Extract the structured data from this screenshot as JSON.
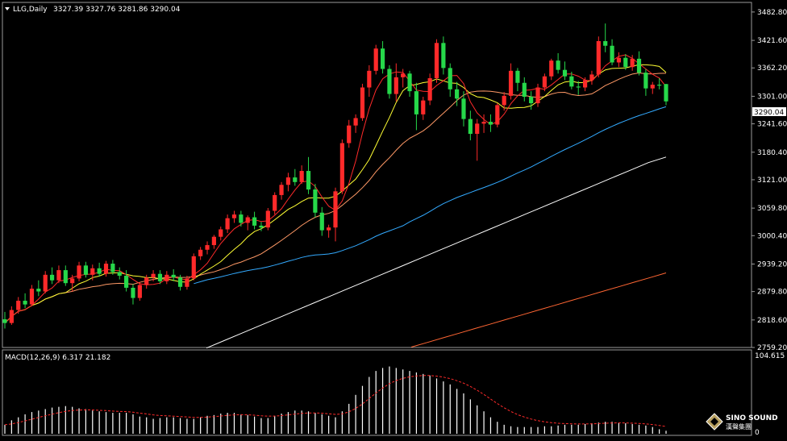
{
  "chart_data": [
    {
      "type": "candlestick",
      "header": {
        "symbol_label": "LLG,Daily",
        "ohlc_text": "3327.39 3327.76 3281.86 3290.04"
      },
      "y_ticks": [
        "3482.80",
        "3421.60",
        "3362.20",
        "3301.00",
        "3241.60",
        "3180.40",
        "3121.00",
        "3059.80",
        "3000.40",
        "2939.20",
        "2879.80",
        "2818.60",
        "2759.20"
      ],
      "ylim": [
        2759.2,
        3500.0
      ],
      "current_price_label": "3290.04",
      "colors": {
        "up": "#ff2a2a",
        "down": "#26d84a",
        "ma5": "#ff2a2a",
        "ma10": "#ffff33",
        "ma20": "#ff9966",
        "ma60": "#33aaff",
        "ma120": "#ffffff",
        "ma250": "#ff6633",
        "grid": "#555555"
      },
      "candles": [
        [
          2820,
          2836,
          2800,
          2812
        ],
        [
          2812,
          2848,
          2808,
          2840
        ],
        [
          2840,
          2868,
          2832,
          2860
        ],
        [
          2860,
          2876,
          2844,
          2852
        ],
        [
          2852,
          2894,
          2848,
          2886
        ],
        [
          2886,
          2904,
          2870,
          2880
        ],
        [
          2880,
          2924,
          2876,
          2916
        ],
        [
          2916,
          2932,
          2896,
          2904
        ],
        [
          2904,
          2936,
          2898,
          2926
        ],
        [
          2926,
          2936,
          2892,
          2898
        ],
        [
          2898,
          2916,
          2880,
          2908
        ],
        [
          2908,
          2944,
          2902,
          2936
        ],
        [
          2936,
          2944,
          2910,
          2916
        ],
        [
          2916,
          2938,
          2904,
          2930
        ],
        [
          2930,
          2942,
          2912,
          2918
        ],
        [
          2918,
          2946,
          2912,
          2940
        ],
        [
          2940,
          2948,
          2916,
          2922
        ],
        [
          2922,
          2932,
          2906,
          2914
        ],
        [
          2914,
          2926,
          2880,
          2888
        ],
        [
          2888,
          2896,
          2852,
          2866
        ],
        [
          2866,
          2900,
          2860,
          2894
        ],
        [
          2894,
          2916,
          2886,
          2910
        ],
        [
          2910,
          2926,
          2902,
          2918
        ],
        [
          2918,
          2926,
          2896,
          2902
        ],
        [
          2902,
          2924,
          2896,
          2916
        ],
        [
          2916,
          2928,
          2902,
          2910
        ],
        [
          2910,
          2916,
          2882,
          2890
        ],
        [
          2890,
          2914,
          2884,
          2908
        ],
        [
          2908,
          2962,
          2904,
          2956
        ],
        [
          2956,
          2976,
          2948,
          2970
        ],
        [
          2970,
          2988,
          2960,
          2980
        ],
        [
          2980,
          3002,
          2972,
          2998
        ],
        [
          2998,
          3020,
          2990,
          3014
        ],
        [
          3014,
          3046,
          3006,
          3038
        ],
        [
          3038,
          3054,
          3028,
          3046
        ],
        [
          3046,
          3054,
          3020,
          3028
        ],
        [
          3028,
          3044,
          3012,
          3040
        ],
        [
          3040,
          3052,
          3014,
          3022
        ],
        [
          3022,
          3030,
          3010,
          3018
        ],
        [
          3018,
          3060,
          3012,
          3054
        ],
        [
          3054,
          3094,
          3046,
          3088
        ],
        [
          3088,
          3116,
          3078,
          3110
        ],
        [
          3110,
          3136,
          3096,
          3126
        ],
        [
          3126,
          3144,
          3108,
          3116
        ],
        [
          3116,
          3152,
          3112,
          3140
        ],
        [
          3140,
          3170,
          3090,
          3100
        ],
        [
          3100,
          3112,
          3040,
          3050
        ],
        [
          3050,
          3062,
          3000,
          3012
        ],
        [
          3012,
          3024,
          2996,
          3018
        ],
        [
          3018,
          3104,
          2988,
          3096
        ],
        [
          3096,
          3208,
          3090,
          3200
        ],
        [
          3200,
          3250,
          3190,
          3238
        ],
        [
          3238,
          3262,
          3222,
          3254
        ],
        [
          3254,
          3328,
          3248,
          3320
        ],
        [
          3320,
          3368,
          3300,
          3356
        ],
        [
          3356,
          3412,
          3348,
          3404
        ],
        [
          3404,
          3420,
          3350,
          3360
        ],
        [
          3360,
          3368,
          3296,
          3306
        ],
        [
          3306,
          3372,
          3290,
          3342
        ],
        [
          3342,
          3360,
          3320,
          3350
        ],
        [
          3350,
          3356,
          3300,
          3312
        ],
        [
          3312,
          3330,
          3228,
          3262
        ],
        [
          3262,
          3300,
          3250,
          3292
        ],
        [
          3292,
          3350,
          3282,
          3340
        ],
        [
          3340,
          3424,
          3330,
          3416
        ],
        [
          3416,
          3430,
          3348,
          3362
        ],
        [
          3362,
          3372,
          3300,
          3316
        ],
        [
          3316,
          3332,
          3280,
          3296
        ],
        [
          3296,
          3312,
          3236,
          3252
        ],
        [
          3252,
          3270,
          3206,
          3220
        ],
        [
          3220,
          3252,
          3162,
          3242
        ],
        [
          3242,
          3262,
          3222,
          3246
        ],
        [
          3246,
          3262,
          3224,
          3240
        ],
        [
          3240,
          3286,
          3234,
          3282
        ],
        [
          3282,
          3310,
          3270,
          3302
        ],
        [
          3302,
          3372,
          3294,
          3356
        ],
        [
          3356,
          3362,
          3312,
          3330
        ],
        [
          3330,
          3342,
          3290,
          3300
        ],
        [
          3300,
          3312,
          3272,
          3286
        ],
        [
          3286,
          3328,
          3278,
          3320
        ],
        [
          3320,
          3350,
          3312,
          3344
        ],
        [
          3344,
          3382,
          3336,
          3378
        ],
        [
          3378,
          3394,
          3350,
          3358
        ],
        [
          3358,
          3376,
          3336,
          3344
        ],
        [
          3344,
          3354,
          3316,
          3322
        ],
        [
          3322,
          3334,
          3304,
          3320
        ],
        [
          3320,
          3342,
          3312,
          3336
        ],
        [
          3336,
          3356,
          3326,
          3348
        ],
        [
          3348,
          3430,
          3342,
          3420
        ],
        [
          3420,
          3458,
          3396,
          3410
        ],
        [
          3410,
          3424,
          3368,
          3374
        ],
        [
          3374,
          3396,
          3364,
          3384
        ],
        [
          3384,
          3392,
          3358,
          3364
        ],
        [
          3364,
          3390,
          3356,
          3382
        ],
        [
          3382,
          3398,
          3346,
          3352
        ],
        [
          3352,
          3360,
          3302,
          3318
        ],
        [
          3318,
          3332,
          3306,
          3326
        ],
        [
          3326,
          3340,
          3316,
          3324
        ],
        [
          3327.39,
          3327.76,
          3281.86,
          3290.04
        ]
      ],
      "ma120": [
        2758,
        2774,
        2790,
        2806,
        2822,
        2838,
        2854,
        2870,
        2886,
        2902,
        2918,
        2934,
        2950,
        2966,
        2982,
        2998,
        3014,
        3030,
        3046,
        3062,
        3078,
        3094,
        3110,
        3126,
        3142,
        3158,
        3170
      ],
      "ma250": [
        2760,
        2770,
        2780,
        2790,
        2800,
        2810,
        2820,
        2830,
        2840,
        2850,
        2860,
        2870,
        2880,
        2890,
        2900,
        2910,
        2920
      ],
      "macd": {
        "label": "MACD(12,26,9) 6.317 21.182",
        "ticks": [
          "104.615",
          "0"
        ],
        "ylim": [
          0,
          104.615
        ],
        "histogram": [
          12,
          18,
          22,
          26,
          29,
          31,
          33,
          35,
          36,
          37,
          36,
          34,
          33,
          31,
          30,
          29,
          28,
          28,
          28,
          26,
          23,
          22,
          20,
          21,
          22,
          22,
          21,
          20,
          20,
          22,
          24,
          25,
          27,
          28,
          28,
          26,
          25,
          23,
          21,
          21,
          24,
          27,
          29,
          31,
          31,
          30,
          28,
          26,
          24,
          22,
          30,
          40,
          52,
          64,
          76,
          84,
          88,
          90,
          88,
          86,
          84,
          82,
          80,
          78,
          74,
          70,
          66,
          60,
          54,
          46,
          38,
          30,
          22,
          16,
          12,
          10,
          9,
          9,
          9,
          9,
          10,
          10,
          11,
          12,
          12,
          12,
          13,
          14,
          15,
          16,
          16,
          15,
          14,
          13,
          12,
          11,
          9,
          6,
          4
        ]
      }
    }
  ],
  "watermark": {
    "brand": "SINO SOUND",
    "chinese": "漢聲集團"
  }
}
